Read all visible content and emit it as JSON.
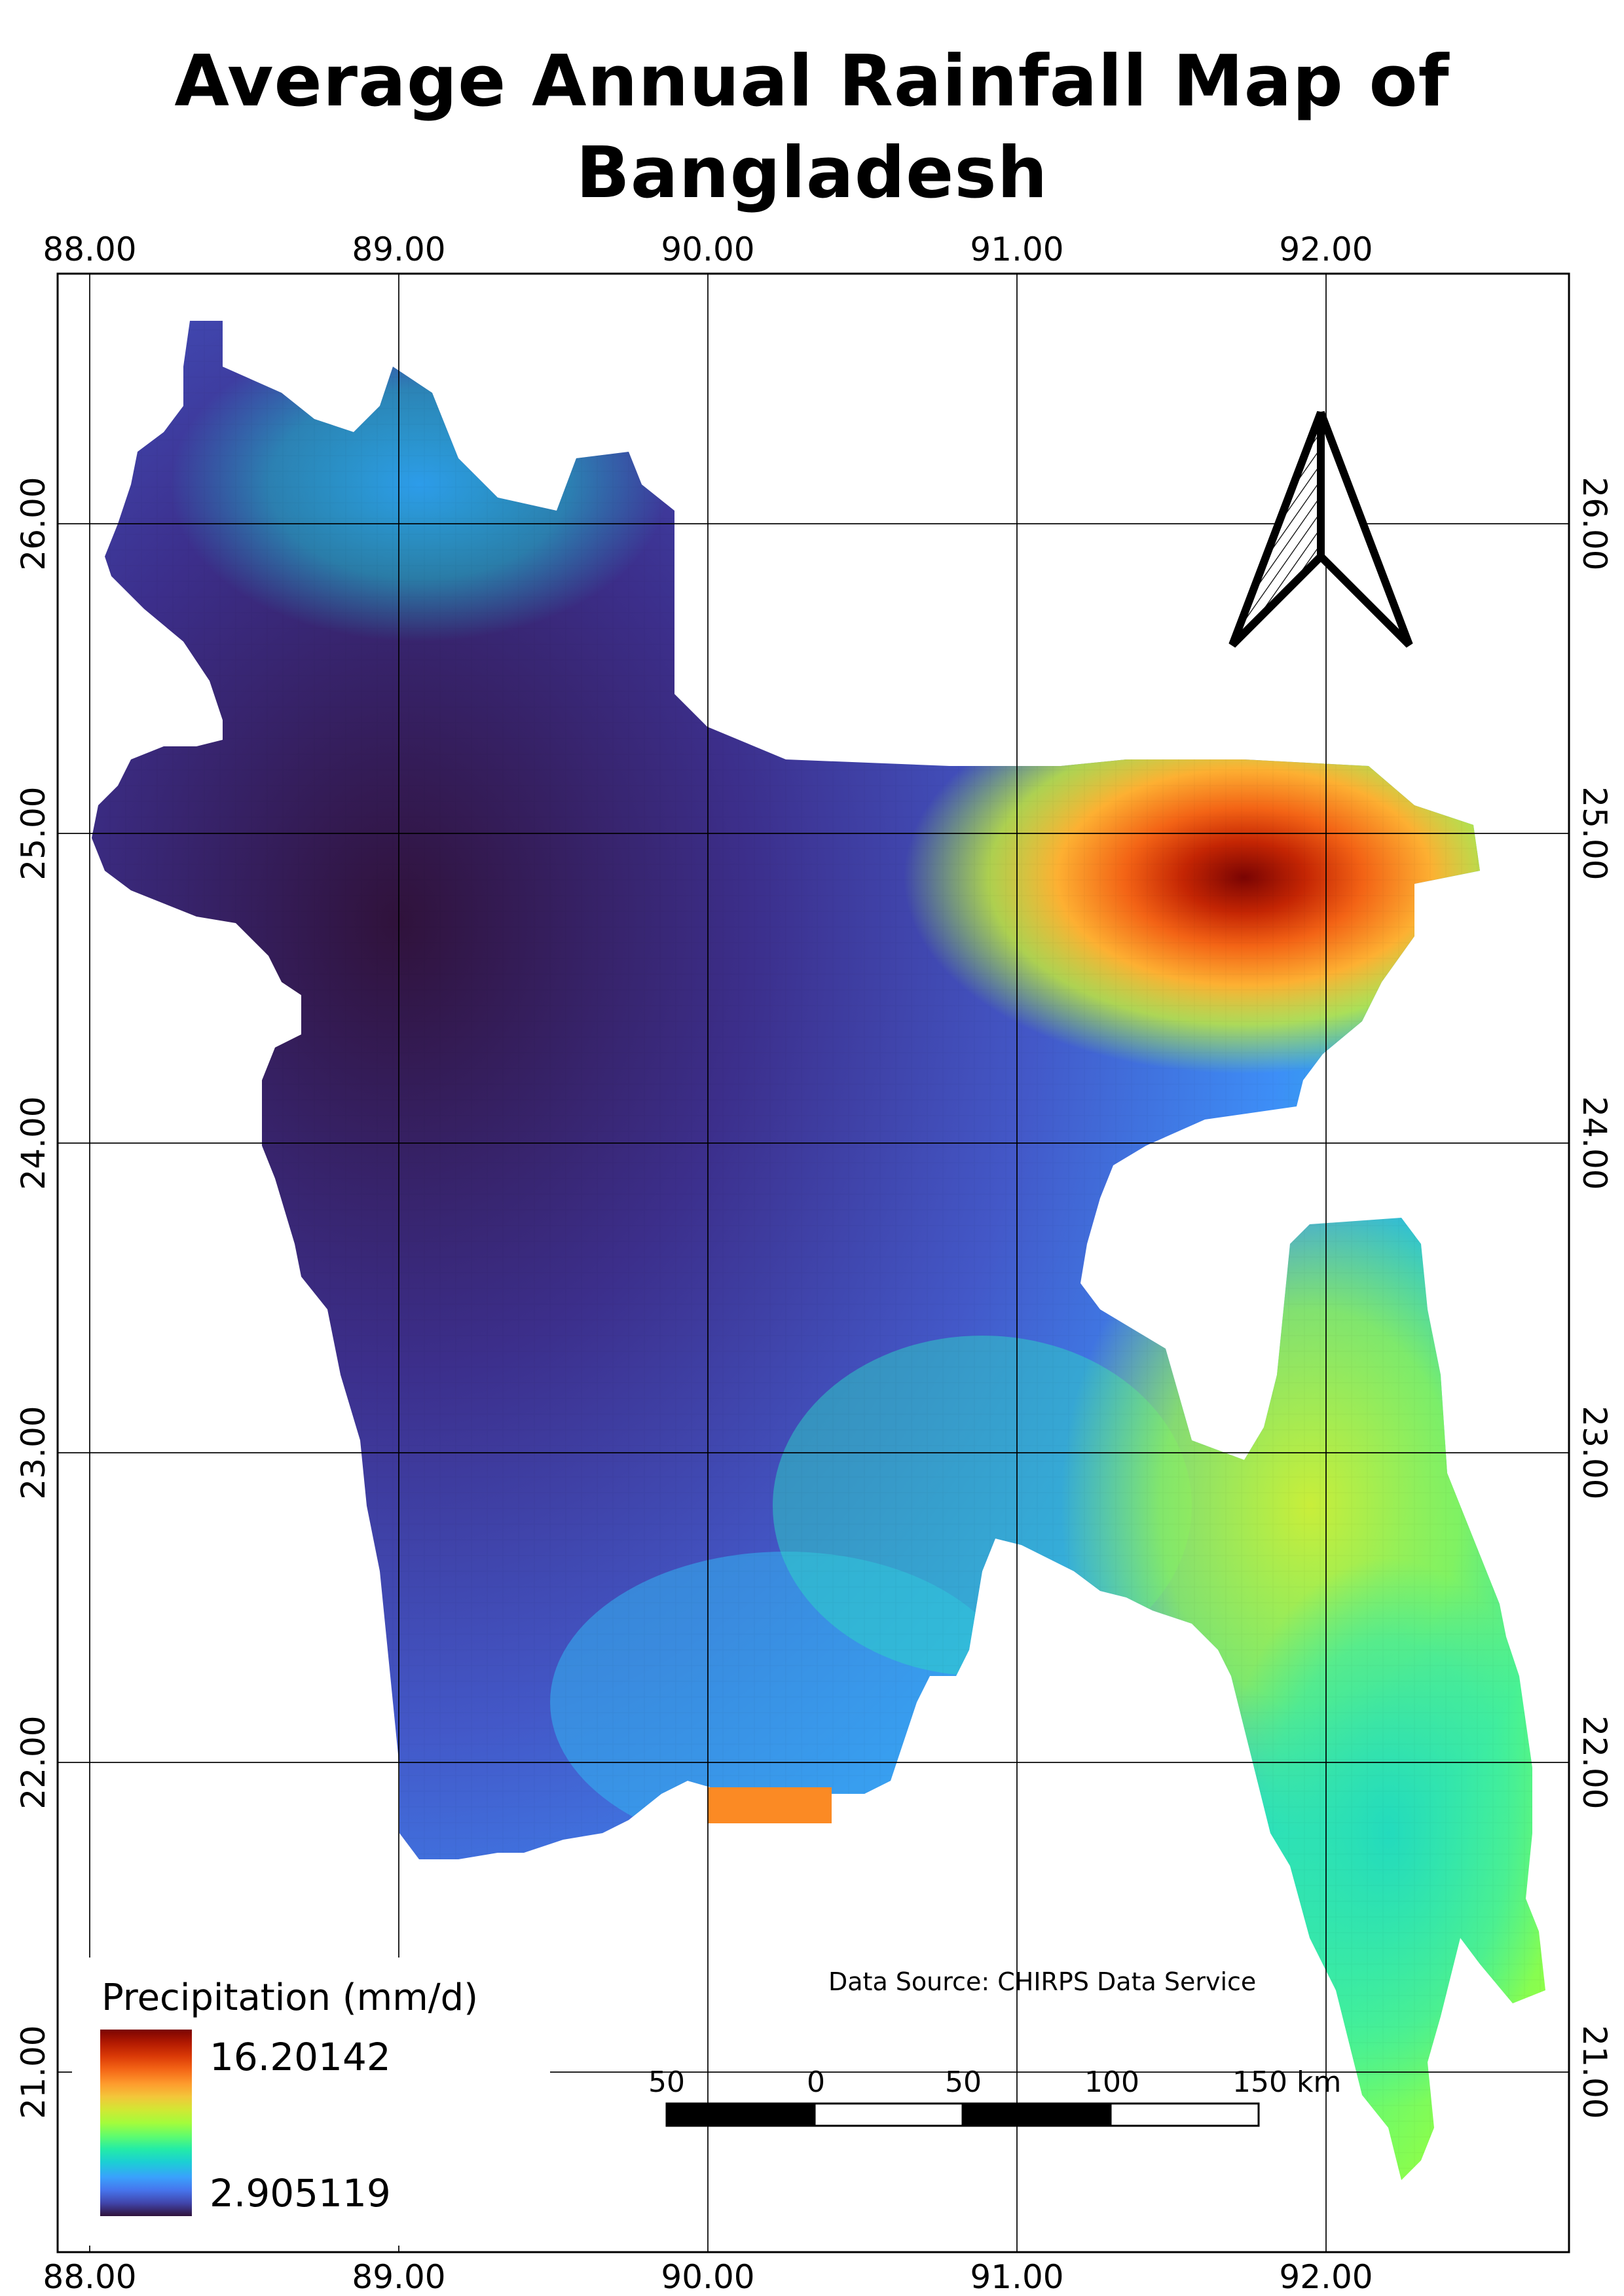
{
  "title": "Average Annual Rainfall Map of Bangladesh",
  "grid": {
    "lon_ticks": [
      "88.00",
      "89.00",
      "90.00",
      "91.00",
      "92.00"
    ],
    "lat_ticks": [
      "26.00",
      "25.00",
      "24.00",
      "23.00",
      "22.00",
      "21.00"
    ]
  },
  "legend": {
    "title": "Precipitation (mm/d)",
    "max": "16.20142",
    "min": "2.905119",
    "colormap": [
      "#30123b",
      "#4145ab",
      "#4675ed",
      "#39a2fc",
      "#1bcfd4",
      "#24eca6",
      "#61fc6c",
      "#a4fc3b",
      "#d1e834",
      "#f3c63a",
      "#fe9b2d",
      "#f36315",
      "#d93806",
      "#b11901",
      "#7a0403"
    ]
  },
  "scale_bar": {
    "labels": [
      "50",
      "0",
      "50",
      "100",
      "150 km"
    ]
  },
  "data_source": "Data Source: CHIRPS Data Service",
  "north_arrow": "north-arrow-icon"
}
